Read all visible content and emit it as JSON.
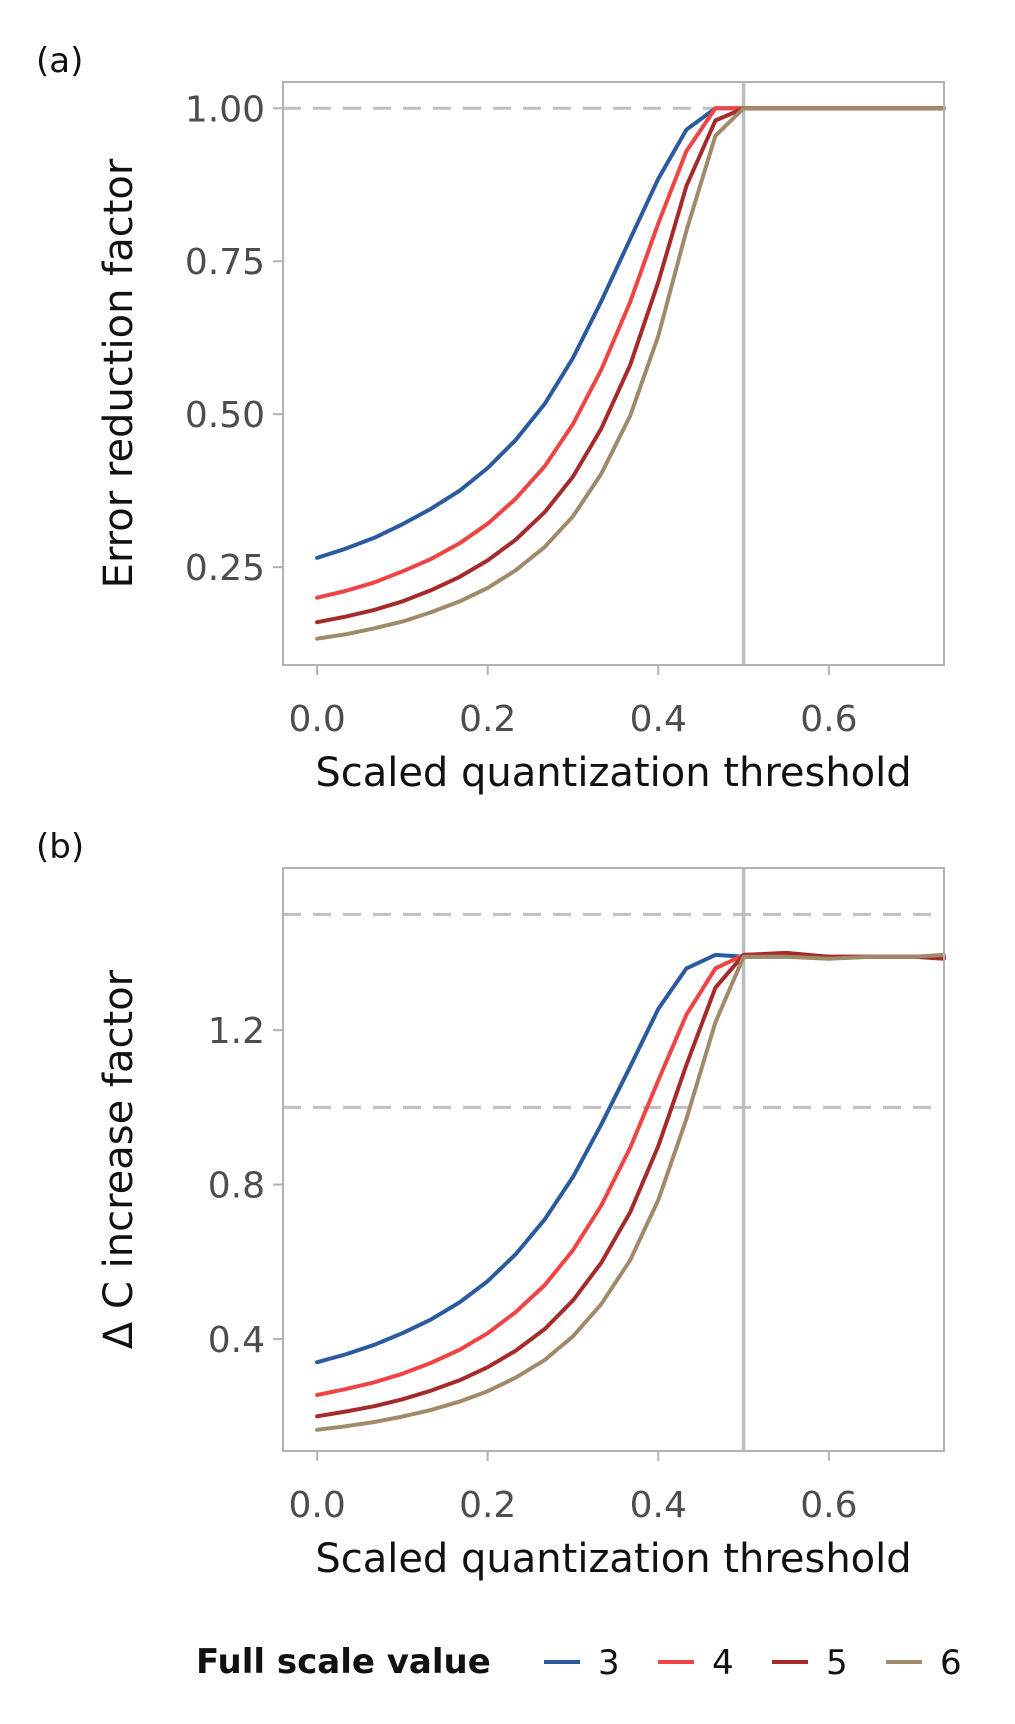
{
  "chart_data": [
    {
      "type": "line",
      "panel_label": "(a)",
      "xlabel": "Scaled quantization threshold",
      "ylabel": "Error reduction factor",
      "xlim": [
        -0.04,
        0.735
      ],
      "ylim": [
        0.09,
        1.043
      ],
      "xticks": [
        0.0,
        0.2,
        0.4,
        0.6
      ],
      "xtick_labels": [
        "0.0",
        "0.2",
        "0.4",
        "0.6"
      ],
      "yticks": [
        0.25,
        0.5,
        0.75,
        1.0
      ],
      "ytick_labels": [
        "0.25",
        "0.50",
        "0.75",
        "1.00"
      ],
      "hlines_dashed": [
        1.0
      ],
      "vline": 0.5,
      "series": [
        {
          "name": "3",
          "color": "#2c5aa0",
          "x": [
            0,
            0.033,
            0.067,
            0.1,
            0.133,
            0.167,
            0.2,
            0.233,
            0.267,
            0.3,
            0.333,
            0.367,
            0.4,
            0.433,
            0.467,
            0.5,
            0.55,
            0.6,
            0.65,
            0.7,
            0.735
          ],
          "y": [
            0.265,
            0.28,
            0.298,
            0.32,
            0.345,
            0.375,
            0.412,
            0.458,
            0.517,
            0.592,
            0.684,
            0.786,
            0.885,
            0.965,
            1.0,
            1.0,
            1.0,
            1.0,
            1.0,
            1.0,
            1.0
          ]
        },
        {
          "name": "4",
          "color": "#f04444",
          "x": [
            0,
            0.033,
            0.067,
            0.1,
            0.133,
            0.167,
            0.2,
            0.233,
            0.267,
            0.3,
            0.333,
            0.367,
            0.4,
            0.433,
            0.467,
            0.5,
            0.55,
            0.6,
            0.65,
            0.7,
            0.735
          ],
          "y": [
            0.2,
            0.211,
            0.225,
            0.243,
            0.263,
            0.289,
            0.321,
            0.362,
            0.415,
            0.484,
            0.572,
            0.683,
            0.812,
            0.93,
            1.0,
            1.0,
            1.0,
            1.0,
            1.0,
            1.0,
            1.0
          ]
        },
        {
          "name": "5",
          "color": "#a52a2a",
          "x": [
            0,
            0.033,
            0.067,
            0.1,
            0.133,
            0.167,
            0.2,
            0.233,
            0.267,
            0.3,
            0.333,
            0.367,
            0.4,
            0.433,
            0.467,
            0.5,
            0.55,
            0.6,
            0.65,
            0.7,
            0.735
          ],
          "y": [
            0.16,
            0.169,
            0.18,
            0.194,
            0.212,
            0.234,
            0.261,
            0.295,
            0.34,
            0.398,
            0.476,
            0.58,
            0.716,
            0.873,
            0.98,
            1.0,
            1.0,
            1.0,
            1.0,
            1.0,
            1.0
          ]
        },
        {
          "name": "6",
          "color": "#a08a6a",
          "x": [
            0,
            0.033,
            0.067,
            0.1,
            0.133,
            0.167,
            0.2,
            0.233,
            0.267,
            0.3,
            0.333,
            0.367,
            0.4,
            0.433,
            0.467,
            0.5,
            0.55,
            0.6,
            0.65,
            0.7,
            0.735
          ],
          "y": [
            0.133,
            0.14,
            0.15,
            0.161,
            0.176,
            0.194,
            0.216,
            0.245,
            0.283,
            0.333,
            0.402,
            0.497,
            0.628,
            0.8,
            0.955,
            1.0,
            1.0,
            1.0,
            1.0,
            1.0,
            1.0
          ]
        }
      ]
    },
    {
      "type": "line",
      "panel_label": "(b)",
      "xlabel": "Scaled quantization threshold",
      "ylabel": "Δ C increase factor",
      "xlim": [
        -0.04,
        0.735
      ],
      "ylim": [
        0.11,
        1.62
      ],
      "xticks": [
        0.0,
        0.2,
        0.4,
        0.6
      ],
      "xtick_labels": [
        "0.0",
        "0.2",
        "0.4",
        "0.6"
      ],
      "yticks": [
        0.4,
        0.8,
        1.2
      ],
      "ytick_labels": [
        "0.4",
        "0.8",
        "1.2"
      ],
      "hlines_dashed": [
        1.0,
        1.5
      ],
      "vline": 0.5,
      "series": [
        {
          "name": "3",
          "color": "#2c5aa0",
          "x": [
            0,
            0.033,
            0.067,
            0.1,
            0.133,
            0.167,
            0.2,
            0.233,
            0.267,
            0.3,
            0.333,
            0.367,
            0.4,
            0.433,
            0.467,
            0.5,
            0.55,
            0.6,
            0.65,
            0.7,
            0.735
          ],
          "y": [
            0.34,
            0.36,
            0.385,
            0.415,
            0.45,
            0.495,
            0.55,
            0.62,
            0.71,
            0.82,
            0.955,
            1.105,
            1.255,
            1.36,
            1.395,
            1.39,
            1.39,
            1.39,
            1.39,
            1.39,
            1.39
          ]
        },
        {
          "name": "4",
          "color": "#f04444",
          "x": [
            0,
            0.033,
            0.067,
            0.1,
            0.133,
            0.167,
            0.2,
            0.233,
            0.267,
            0.3,
            0.333,
            0.367,
            0.4,
            0.433,
            0.467,
            0.5,
            0.55,
            0.6,
            0.65,
            0.7,
            0.735
          ],
          "y": [
            0.255,
            0.27,
            0.288,
            0.31,
            0.338,
            0.372,
            0.415,
            0.47,
            0.54,
            0.63,
            0.745,
            0.895,
            1.07,
            1.24,
            1.36,
            1.395,
            1.395,
            1.39,
            1.39,
            1.39,
            1.39
          ]
        },
        {
          "name": "5",
          "color": "#a52a2a",
          "x": [
            0,
            0.033,
            0.067,
            0.1,
            0.133,
            0.167,
            0.2,
            0.233,
            0.267,
            0.3,
            0.333,
            0.367,
            0.4,
            0.433,
            0.467,
            0.5,
            0.55,
            0.6,
            0.65,
            0.7,
            0.735
          ],
          "y": [
            0.2,
            0.212,
            0.226,
            0.244,
            0.266,
            0.293,
            0.327,
            0.37,
            0.426,
            0.5,
            0.597,
            0.728,
            0.9,
            1.11,
            1.31,
            1.395,
            1.4,
            1.39,
            1.39,
            1.39,
            1.385
          ]
        },
        {
          "name": "6",
          "color": "#a08a6a",
          "x": [
            0,
            0.033,
            0.067,
            0.1,
            0.133,
            0.167,
            0.2,
            0.233,
            0.267,
            0.3,
            0.333,
            0.367,
            0.4,
            0.433,
            0.467,
            0.5,
            0.55,
            0.6,
            0.65,
            0.7,
            0.735
          ],
          "y": [
            0.165,
            0.174,
            0.185,
            0.199,
            0.216,
            0.238,
            0.265,
            0.3,
            0.346,
            0.407,
            0.49,
            0.604,
            0.76,
            0.97,
            1.22,
            1.39,
            1.39,
            1.385,
            1.39,
            1.39,
            1.395
          ]
        }
      ]
    }
  ],
  "legend": {
    "title": "Full scale value",
    "entries": [
      {
        "label": "3",
        "color": "#2c5aa0"
      },
      {
        "label": "4",
        "color": "#f04444"
      },
      {
        "label": "5",
        "color": "#a52a2a"
      },
      {
        "label": "6",
        "color": "#a08a6a"
      }
    ]
  }
}
